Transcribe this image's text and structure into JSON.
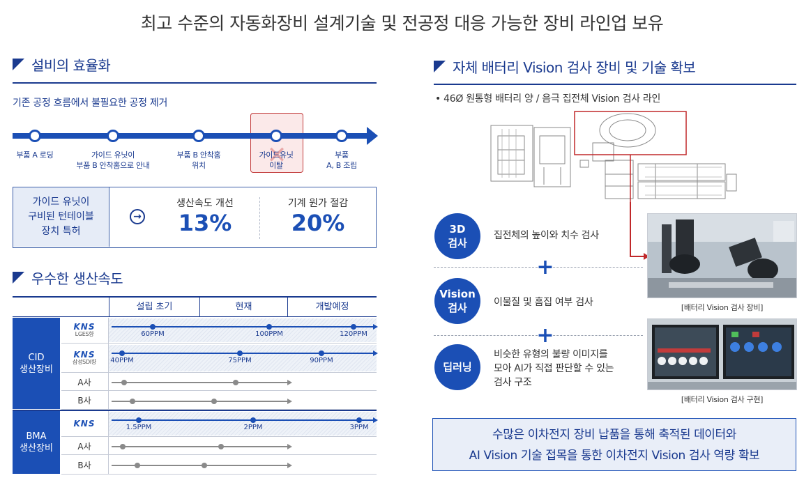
{
  "title": "최고 수준의 자동화장비 설계기술 및 전공정 대응 가능한 장비 라인업 보유",
  "efficiency": {
    "heading": "설비의 효율화",
    "subtitle": "기존 공정 흐름에서 불필요한 공정 제거",
    "steps": [
      {
        "line1": "부품 A 로딩",
        "line2": ""
      },
      {
        "line1": "가이드 유닛이",
        "line2": "부품 B  안착홈으로 안내"
      },
      {
        "line1": "부품 B 안착홈",
        "line2": "위치"
      },
      {
        "line1": "가이드유닛",
        "line2": "이탈"
      },
      {
        "line1": "부품",
        "line2": "A, B 조립"
      }
    ],
    "patent_lines": [
      "가이드 유닛이",
      "구비된 턴테이블",
      "장치 특허"
    ],
    "stats": [
      {
        "label": "생산속도 개선",
        "value": "13%"
      },
      {
        "label": "기계 원가 절감",
        "value": "20%"
      }
    ]
  },
  "speed": {
    "heading": "우수한 생산속도",
    "columns": [
      "설립 초기",
      "현재",
      "개발예정"
    ],
    "groups": [
      {
        "line1": "CID",
        "line2": "생산장비"
      },
      {
        "line1": "BMA",
        "line2": "생산장비"
      }
    ],
    "logo_text": "KNS",
    "rows": [
      {
        "name": "",
        "sub": "LGES향",
        "kns": true,
        "labels": [
          "60PPM",
          "100PPM",
          "120PPM"
        ]
      },
      {
        "name": "",
        "sub": "삼성SDI향",
        "kns": true,
        "labels": [
          "40PPM",
          "75PPM",
          "90PPM"
        ]
      },
      {
        "name": "A사",
        "sub": "",
        "kns": false,
        "labels": []
      },
      {
        "name": "B사",
        "sub": "",
        "kns": false,
        "labels": []
      },
      {
        "name": "",
        "sub": "",
        "kns": true,
        "labels": [
          "1.5PPM",
          "2PPM",
          "3PPM"
        ]
      },
      {
        "name": "A사",
        "sub": "",
        "kns": false,
        "labels": []
      },
      {
        "name": "B사",
        "sub": "",
        "kns": false,
        "labels": []
      }
    ]
  },
  "vision": {
    "heading": "자체 배터리 Vision 검사 장비 및 기술 확보",
    "bullet": "• 46Ø 원통형 배터리 양 / 음극 집전체 Vision 검사 라인",
    "inspections": [
      {
        "line1": "3D",
        "line2": "검사",
        "desc": [
          "집전체의 높이와 치수 검사"
        ]
      },
      {
        "line1": "Vision",
        "line2": "검사",
        "desc": [
          "이물질 및 흠집 여부 검사"
        ]
      },
      {
        "line1": "딥러닝",
        "line2": "",
        "desc": [
          "비슷한 유형의 불량 이미지를",
          "모아 AI가 직접 판단할 수 있는",
          "검사 구조"
        ]
      }
    ],
    "captions": [
      "[배터리 Vision 검사 장비]",
      "[배터리 Vision 검사 구현]"
    ],
    "summary": [
      "수많은 이차전지 장비 납품을 통해 축적된 데이터와",
      "AI Vision 기술 접목을 통한 이차전지 Vision 검사 역량 확보"
    ]
  },
  "colors": {
    "primary": "#1b4fb5",
    "navy": "#1a3a8f",
    "highlight": "#c23b3b"
  }
}
